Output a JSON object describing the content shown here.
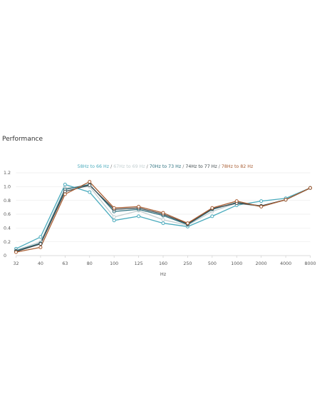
{
  "section_title": "Performance",
  "chart_data": {
    "type": "line",
    "title": "",
    "xlabel": "Hz",
    "ylabel": "",
    "categories": [
      "32",
      "40",
      "63",
      "80",
      "100",
      "125",
      "160",
      "250",
      "500",
      "1000",
      "2000",
      "4000",
      "8000"
    ],
    "ylim": [
      0,
      1.2
    ],
    "yticks": [
      "0",
      "0.2",
      "0.4",
      "0.6",
      "0.8",
      "1.0",
      "1.2"
    ],
    "grid": true,
    "legend_position": "top-center",
    "legend_separator": " / ",
    "series": [
      {
        "name": "58Hz to 66 Hz",
        "color": "#4aabbd",
        "values": [
          0.1,
          0.27,
          1.03,
          0.92,
          0.51,
          0.57,
          0.47,
          0.42,
          0.57,
          0.73,
          0.79,
          0.83,
          0.98
        ]
      },
      {
        "name": "67Hz to 69 Hz",
        "color": "#c2ced0",
        "values": [
          0.08,
          0.2,
          0.98,
          1.0,
          0.56,
          0.65,
          0.52,
          0.44,
          0.64,
          0.76,
          0.71,
          0.81,
          0.98
        ]
      },
      {
        "name": "70Hz to 73 Hz",
        "color": "#2a6f7d",
        "values": [
          0.07,
          0.18,
          0.96,
          1.03,
          0.64,
          0.67,
          0.58,
          0.45,
          0.67,
          0.77,
          0.72,
          0.81,
          0.98
        ]
      },
      {
        "name": "74Hz to 77 Hz",
        "color": "#3f4a4d",
        "values": [
          0.06,
          0.17,
          0.93,
          1.02,
          0.67,
          0.69,
          0.6,
          0.46,
          0.68,
          0.76,
          0.72,
          0.81,
          0.98
        ]
      },
      {
        "name": "78Hz to 82 Hz",
        "color": "#a85d32",
        "values": [
          0.05,
          0.12,
          0.89,
          1.07,
          0.69,
          0.71,
          0.62,
          0.47,
          0.69,
          0.79,
          0.71,
          0.81,
          0.98
        ]
      }
    ]
  }
}
